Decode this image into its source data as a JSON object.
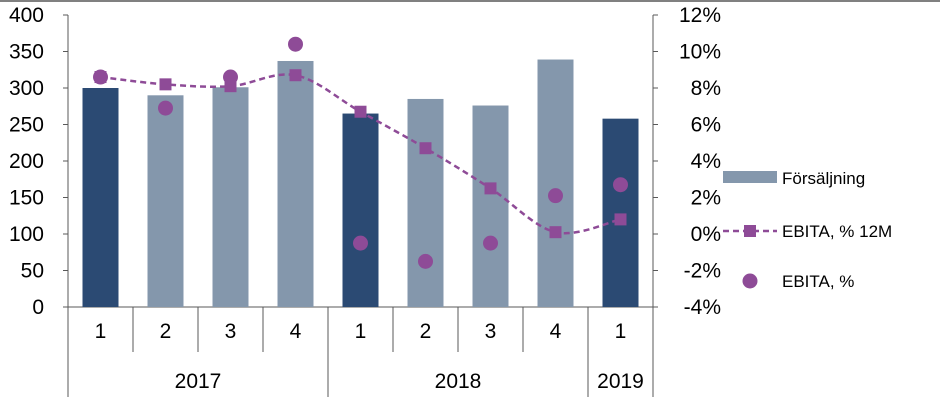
{
  "chart_data": {
    "type": "bar",
    "categories": [
      "1",
      "2",
      "3",
      "4",
      "1",
      "2",
      "3",
      "4",
      "1"
    ],
    "groups": [
      {
        "label": "2017",
        "count": 4
      },
      {
        "label": "2018",
        "count": 4
      },
      {
        "label": "2019",
        "count": 1
      }
    ],
    "series": [
      {
        "name": "Försäljning",
        "type": "bar",
        "axis": "left",
        "values": [
          300,
          290,
          301,
          337,
          265,
          285,
          276,
          339,
          258
        ]
      },
      {
        "name": "EBITA, % 12M",
        "type": "line",
        "axis": "right",
        "values": [
          8.6,
          8.2,
          8.1,
          8.7,
          6.7,
          4.7,
          2.5,
          0.1,
          0.8
        ]
      },
      {
        "name": "EBITA, %",
        "type": "scatter",
        "axis": "right",
        "values": [
          8.6,
          6.9,
          8.6,
          10.4,
          -0.5,
          -1.5,
          -0.5,
          2.1,
          2.7
        ]
      }
    ],
    "highlighted_bars": [
      0,
      4,
      8
    ],
    "y_left": {
      "min": 0,
      "max": 400,
      "ticks": [
        "0",
        "50",
        "100",
        "150",
        "200",
        "250",
        "300",
        "350",
        "400"
      ]
    },
    "y_right": {
      "min": -4,
      "max": 12,
      "ticks": [
        "-4%",
        "-2%",
        "0%",
        "2%",
        "4%",
        "6%",
        "8%",
        "10%",
        "12%"
      ]
    },
    "legend_position": "right",
    "grid": false,
    "colors": {
      "bar_dark": "#2b4a73",
      "bar_light": "#8497ac",
      "line": "#8e4b97",
      "marker": "#8e4b97"
    }
  }
}
